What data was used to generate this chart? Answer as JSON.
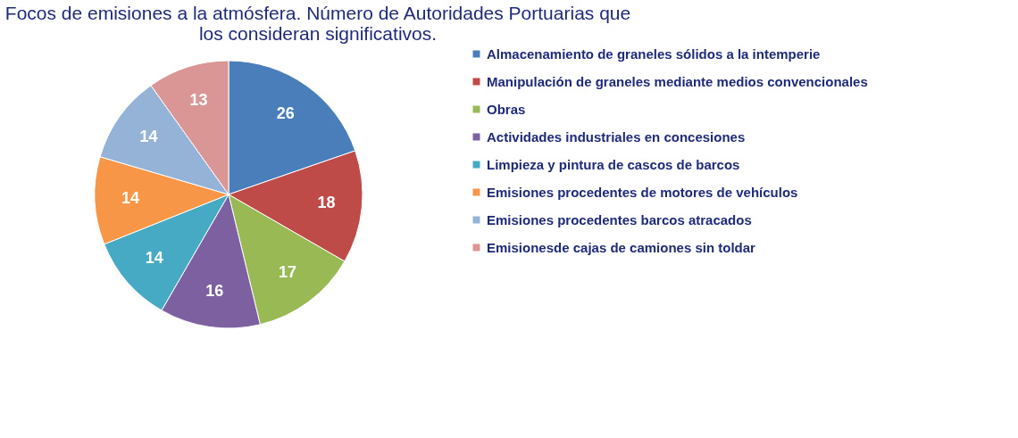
{
  "chart_data": {
    "type": "pie",
    "title": "Focos de emisiones a la atmósfera. Número de Autoridades Portuarias que los consideran significativos.",
    "categories": [
      "Almacenamiento de graneles sólidos a la intemperie",
      "Manipulación de graneles  mediante medios convencionales",
      "Obras",
      "Actividades industriales en concesiones",
      "Limpieza y pintura de cascos de barcos",
      "Emisiones procedentes de motores de vehículos",
      "Emisiones procedentes barcos atracados",
      "Emisionesde cajas de camiones sin toldar"
    ],
    "values": [
      26,
      18,
      17,
      16,
      14,
      14,
      14,
      13
    ],
    "colors": [
      "#4a7ebb",
      "#be4b48",
      "#98b954",
      "#7d60a0",
      "#46aac5",
      "#f79646",
      "#95b3d7",
      "#d99694"
    ],
    "data_labels": true,
    "legend": "right"
  }
}
